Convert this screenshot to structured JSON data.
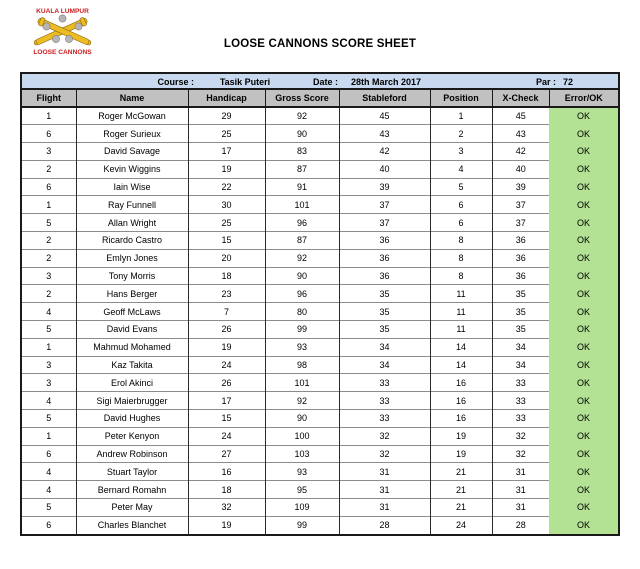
{
  "logo": {
    "top_text": "KUALA LUMPUR",
    "bottom_text": "LOOSE CANNONS"
  },
  "title": "LOOSE CANNONS SCORE SHEET",
  "info": {
    "course_label": "Course :",
    "course_value": "Tasik Puteri",
    "date_label": "Date :",
    "date_value": "28th March 2017",
    "par_label": "Par :",
    "par_value": "72"
  },
  "table": {
    "columns": [
      "Flight",
      "Name",
      "Handicap",
      "Gross Score",
      "Stableford",
      "Position",
      "X-Check",
      "Error/OK"
    ],
    "rows": [
      [
        "1",
        "Roger McGowan",
        "29",
        "92",
        "45",
        "1",
        "45",
        "OK"
      ],
      [
        "6",
        "Roger Surieux",
        "25",
        "90",
        "43",
        "2",
        "43",
        "OK"
      ],
      [
        "3",
        "David Savage",
        "17",
        "83",
        "42",
        "3",
        "42",
        "OK"
      ],
      [
        "2",
        "Kevin Wiggins",
        "19",
        "87",
        "40",
        "4",
        "40",
        "OK"
      ],
      [
        "6",
        "Iain Wise",
        "22",
        "91",
        "39",
        "5",
        "39",
        "OK"
      ],
      [
        "1",
        "Ray Funnell",
        "30",
        "101",
        "37",
        "6",
        "37",
        "OK"
      ],
      [
        "5",
        "Allan Wright",
        "25",
        "96",
        "37",
        "6",
        "37",
        "OK"
      ],
      [
        "2",
        "Ricardo Castro",
        "15",
        "87",
        "36",
        "8",
        "36",
        "OK"
      ],
      [
        "2",
        "Emlyn Jones",
        "20",
        "92",
        "36",
        "8",
        "36",
        "OK"
      ],
      [
        "3",
        "Tony Morris",
        "18",
        "90",
        "36",
        "8",
        "36",
        "OK"
      ],
      [
        "2",
        "Hans Berger",
        "23",
        "96",
        "35",
        "11",
        "35",
        "OK"
      ],
      [
        "4",
        "Geoff McLaws",
        "7",
        "80",
        "35",
        "11",
        "35",
        "OK"
      ],
      [
        "5",
        "David Evans",
        "26",
        "99",
        "35",
        "11",
        "35",
        "OK"
      ],
      [
        "1",
        "Mahmud Mohamed",
        "19",
        "93",
        "34",
        "14",
        "34",
        "OK"
      ],
      [
        "3",
        "Kaz Takita",
        "24",
        "98",
        "34",
        "14",
        "34",
        "OK"
      ],
      [
        "3",
        "Erol Akinci",
        "26",
        "101",
        "33",
        "16",
        "33",
        "OK"
      ],
      [
        "4",
        "Sigi Maierbrugger",
        "17",
        "92",
        "33",
        "16",
        "33",
        "OK"
      ],
      [
        "5",
        "David Hughes",
        "15",
        "90",
        "33",
        "16",
        "33",
        "OK"
      ],
      [
        "1",
        "Peter Kenyon",
        "24",
        "100",
        "32",
        "19",
        "32",
        "OK"
      ],
      [
        "6",
        "Andrew Robinson",
        "27",
        "103",
        "32",
        "19",
        "32",
        "OK"
      ],
      [
        "4",
        "Stuart Taylor",
        "16",
        "93",
        "31",
        "21",
        "31",
        "OK"
      ],
      [
        "4",
        "Bernard Romahn",
        "18",
        "95",
        "31",
        "21",
        "31",
        "OK"
      ],
      [
        "5",
        "Peter May",
        "32",
        "109",
        "31",
        "21",
        "31",
        "OK"
      ],
      [
        "6",
        "Charles Blanchet",
        "19",
        "99",
        "28",
        "24",
        "28",
        "OK"
      ]
    ]
  },
  "colors": {
    "info_band": "#c9d9f0",
    "header_bg": "#c1c1c1",
    "ok_green": "#b3e295",
    "logo_red": "#cc2020",
    "cannon_gold": "#edbb22"
  }
}
